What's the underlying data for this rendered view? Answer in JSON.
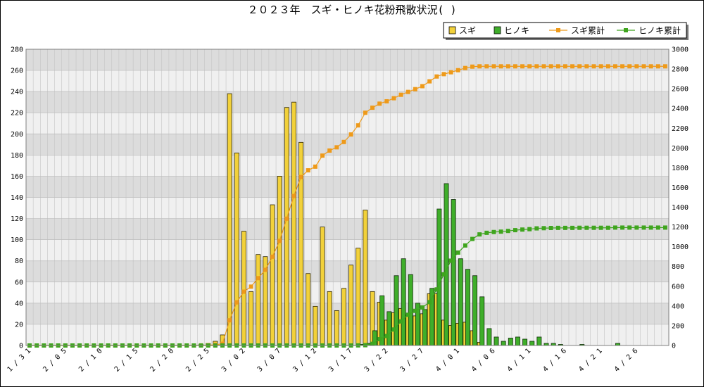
{
  "chart_data": {
    "type": "bar",
    "title": "２０２３年　スギ・ヒノキ花粉飛散状況( )",
    "xlabel": "",
    "ylabel": "",
    "ylim": [
      0,
      280
    ],
    "y2lim": [
      0,
      3000
    ],
    "y_ticks": [
      "0",
      "20",
      "40",
      "60",
      "80",
      "100",
      "120",
      "140",
      "160",
      "180",
      "200",
      "220",
      "240",
      "260",
      "280"
    ],
    "y2_ticks": [
      "0",
      "200",
      "400",
      "600",
      "800",
      "1000",
      "1200",
      "1400",
      "1600",
      "1800",
      "2000",
      "2200",
      "2400",
      "2600",
      "2800",
      "3000"
    ],
    "x_tick_labels": [
      "1/31",
      "2/05",
      "2/10",
      "2/15",
      "2/20",
      "2/25",
      "3/02",
      "3/07",
      "3/12",
      "3/17",
      "3/22",
      "3/27",
      "4/01",
      "4/06",
      "4/11",
      "4/16",
      "4/21",
      "4/26"
    ],
    "x_tick_every": 5,
    "grid": true,
    "legend_position": "top-right",
    "colors": {
      "sugi": "#f2d13a",
      "hinoki": "#3fae2a",
      "sugi_cum": "#ee9a1a",
      "hinoki_cum": "#3fa51e",
      "band_light": "#f0f0f0",
      "band_dark": "#dcdcdc"
    },
    "series": [
      {
        "name": "スギ",
        "axis": "left",
        "kind": "bar",
        "values": [
          0,
          0,
          0,
          0,
          0,
          0,
          0,
          0,
          0,
          0,
          0,
          0,
          0,
          0,
          0,
          0,
          0,
          0,
          0,
          0,
          0,
          0,
          0,
          0,
          1,
          2,
          4,
          10,
          238,
          182,
          108,
          51,
          86,
          84,
          133,
          160,
          225,
          230,
          192,
          68,
          37,
          112,
          51,
          33,
          54,
          76,
          92,
          128,
          51,
          41,
          24,
          31,
          35,
          29,
          28,
          30,
          49,
          49,
          24,
          19,
          21,
          22,
          14,
          3,
          0,
          0,
          0,
          0,
          0,
          0,
          0,
          0,
          0,
          0,
          0,
          0,
          0,
          0,
          0,
          0,
          0,
          0,
          0,
          0,
          0,
          0,
          0,
          0,
          0,
          0
        ]
      },
      {
        "name": "ヒノキ",
        "axis": "left",
        "kind": "bar",
        "values": [
          0,
          0,
          0,
          0,
          0,
          0,
          0,
          0,
          0,
          0,
          0,
          0,
          0,
          0,
          0,
          0,
          0,
          0,
          0,
          0,
          0,
          0,
          0,
          0,
          0,
          0,
          0,
          0,
          0,
          0,
          0,
          0,
          0,
          0,
          0,
          0,
          0,
          0,
          0,
          0,
          0,
          0,
          0,
          0,
          0,
          0,
          1,
          2,
          14,
          47,
          32,
          66,
          82,
          67,
          40,
          34,
          54,
          129,
          153,
          138,
          82,
          72,
          66,
          46,
          16,
          8,
          4,
          7,
          8,
          6,
          4,
          8,
          2,
          2,
          1,
          0,
          0,
          1,
          0,
          0,
          0,
          0,
          2,
          0,
          0,
          0,
          0,
          0,
          0,
          0
        ]
      },
      {
        "name": "スギ累計",
        "axis": "right",
        "kind": "line",
        "values": [
          0,
          0,
          0,
          0,
          0,
          0,
          0,
          0,
          0,
          0,
          0,
          0,
          0,
          0,
          0,
          0,
          0,
          0,
          0,
          0,
          0,
          0,
          0,
          0,
          1,
          3,
          7,
          17,
          255,
          437,
          545,
          596,
          682,
          766,
          899,
          1059,
          1284,
          1514,
          1706,
          1774,
          1811,
          1923,
          1974,
          2007,
          2061,
          2137,
          2229,
          2357,
          2408,
          2449,
          2473,
          2504,
          2539,
          2568,
          2596,
          2626,
          2675,
          2724,
          2748,
          2767,
          2788,
          2810,
          2824,
          2827,
          2827,
          2827,
          2827,
          2827,
          2827,
          2827,
          2827,
          2827,
          2827,
          2827,
          2827,
          2827,
          2827,
          2827,
          2827,
          2827,
          2827,
          2827,
          2827,
          2827,
          2827,
          2827,
          2827,
          2827,
          2827,
          2827
        ]
      },
      {
        "name": "ヒノキ累計",
        "axis": "right",
        "kind": "line",
        "values": [
          0,
          0,
          0,
          0,
          0,
          0,
          0,
          0,
          0,
          0,
          0,
          0,
          0,
          0,
          0,
          0,
          0,
          0,
          0,
          0,
          0,
          0,
          0,
          0,
          0,
          0,
          0,
          0,
          0,
          0,
          0,
          0,
          0,
          0,
          0,
          0,
          0,
          0,
          0,
          0,
          0,
          0,
          0,
          0,
          0,
          0,
          1,
          3,
          17,
          64,
          96,
          162,
          244,
          311,
          351,
          385,
          439,
          568,
          721,
          859,
          941,
          1013,
          1079,
          1125,
          1141,
          1149,
          1153,
          1160,
          1168,
          1174,
          1178,
          1186,
          1188,
          1190,
          1191,
          1191,
          1191,
          1192,
          1192,
          1192,
          1192,
          1192,
          1194,
          1194,
          1194,
          1194,
          1194,
          1194,
          1194,
          1194
        ]
      }
    ]
  }
}
